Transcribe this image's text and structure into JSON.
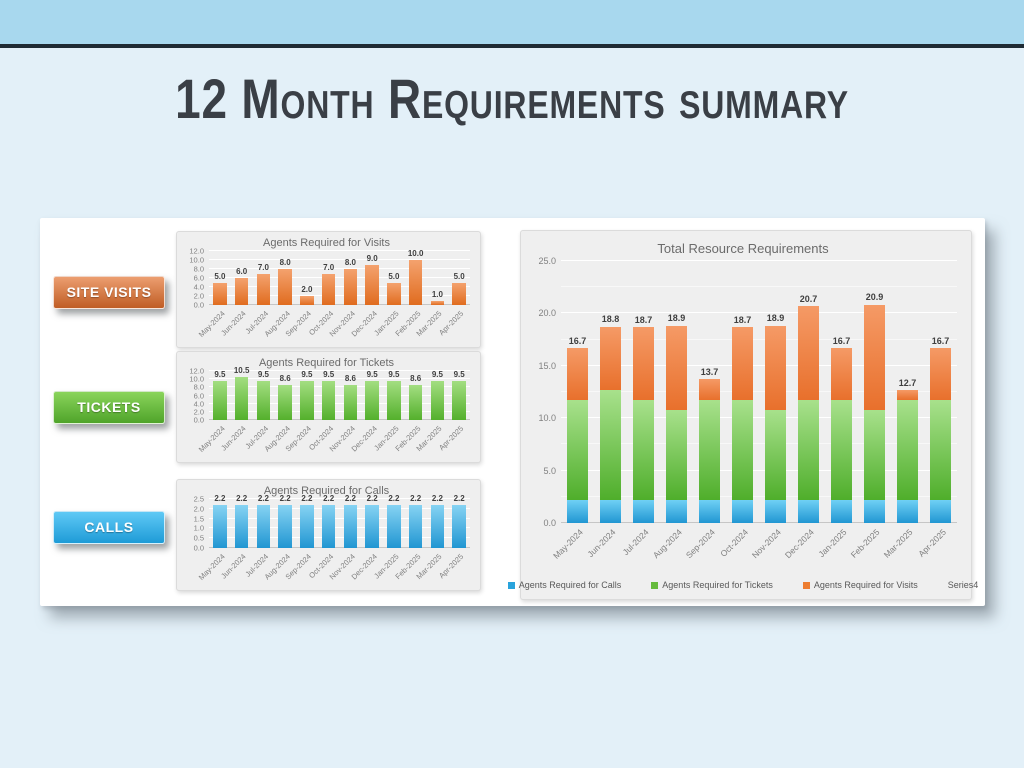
{
  "slide": {
    "title": "12 Month Requirements summary"
  },
  "palette": {
    "top_band": "#A8D8EE",
    "accent_line": "#1E2B34",
    "background": "#E3F0F8",
    "panel": "#FFFFFF",
    "card_background": "#EFEFEF",
    "title_text": "#3A3F46",
    "chart_title_text": "#6B6B6B",
    "axis_text": "#808080",
    "data_label_text": "#3F3F3F"
  },
  "buttons": [
    {
      "id": "site-visits",
      "label": "SITE VISITS",
      "gradient_top": "#EC9E70",
      "gradient_bottom": "#C05D24"
    },
    {
      "id": "tickets",
      "label": "TICKETS",
      "gradient_top": "#8AD45B",
      "gradient_bottom": "#4FA42A"
    },
    {
      "id": "calls",
      "label": "CALLS",
      "gradient_top": "#5FC9F5",
      "gradient_bottom": "#1E9BD7"
    }
  ],
  "chart_data": [
    {
      "id": "visits",
      "type": "bar",
      "title": "Agents Required for Visits",
      "categories": [
        "May-2024",
        "Jun-2024",
        "Jul-2024",
        "Aug-2024",
        "Sep-2024",
        "Oct-2024",
        "Nov-2024",
        "Dec-2024",
        "Jan-2025",
        "Feb-2025",
        "Mar-2025",
        "Apr-2025"
      ],
      "values": [
        5.0,
        6.0,
        7.0,
        8.0,
        2.0,
        7.0,
        8.0,
        9.0,
        5.0,
        10.0,
        1.0,
        5.0
      ],
      "ylim": [
        0,
        12
      ],
      "ytick_step": 2,
      "grid": true,
      "legend_position": "none",
      "bar_gradient": [
        "#F4A26E",
        "#E06C1F"
      ]
    },
    {
      "id": "tickets",
      "type": "bar",
      "title": "Agents Required for Tickets",
      "categories": [
        "May-2024",
        "Jun-2024",
        "Jul-2024",
        "Aug-2024",
        "Sep-2024",
        "Oct-2024",
        "Nov-2024",
        "Dec-2024",
        "Jan-2025",
        "Feb-2025",
        "Mar-2025",
        "Apr-2025"
      ],
      "values": [
        9.5,
        10.5,
        9.5,
        8.6,
        9.5,
        9.5,
        8.6,
        9.5,
        9.5,
        8.6,
        9.5,
        9.5
      ],
      "ylim": [
        0,
        12
      ],
      "ytick_step": 2,
      "grid": true,
      "legend_position": "none",
      "bar_gradient": [
        "#A3DE81",
        "#54B02C"
      ]
    },
    {
      "id": "calls",
      "type": "bar",
      "title": "Agents Required for Calls",
      "categories": [
        "May-2024",
        "Jun-2024",
        "Jul-2024",
        "Aug-2024",
        "Sep-2024",
        "Oct-2024",
        "Nov-2024",
        "Dec-2024",
        "Jan-2025",
        "Feb-2025",
        "Mar-2025",
        "Apr-2025"
      ],
      "values": [
        2.2,
        2.2,
        2.2,
        2.2,
        2.2,
        2.2,
        2.2,
        2.2,
        2.2,
        2.2,
        2.2,
        2.2
      ],
      "ylim": [
        0,
        2.5
      ],
      "ytick_step": 0.5,
      "grid": true,
      "legend_position": "none",
      "bar_gradient": [
        "#86D3F3",
        "#2196D2"
      ]
    },
    {
      "id": "total",
      "type": "stacked-bar",
      "title": "Total Resource Requirements",
      "categories": [
        "May-2024",
        "Jun-2024",
        "Jul-2024",
        "Aug-2024",
        "Sep-2024",
        "Oct-2024",
        "Nov-2024",
        "Dec-2024",
        "Jan-2025",
        "Feb-2025",
        "Mar-2025",
        "Apr-2025"
      ],
      "series": [
        {
          "name": "Agents Required for Calls",
          "values": [
            2.2,
            2.2,
            2.2,
            2.2,
            2.2,
            2.2,
            2.2,
            2.2,
            2.2,
            2.2,
            2.2,
            2.2
          ],
          "gradient": [
            "#6FD0F5",
            "#2196D2"
          ],
          "legend_color": "#29A3DC"
        },
        {
          "name": "Agents Required for Tickets",
          "values": [
            9.5,
            10.5,
            9.5,
            8.6,
            9.5,
            9.5,
            8.6,
            9.5,
            9.5,
            8.6,
            9.5,
            9.5
          ],
          "gradient": [
            "#A8E18C",
            "#4FAE2B"
          ],
          "legend_color": "#66BB3D"
        },
        {
          "name": "Agents Required for Visits",
          "values": [
            5.0,
            6.0,
            7.0,
            8.0,
            2.0,
            7.0,
            8.0,
            9.0,
            5.0,
            10.0,
            1.0,
            5.0
          ],
          "gradient": [
            "#F59A66",
            "#E8702C"
          ],
          "legend_color": "#ED7D31"
        },
        {
          "name": "Series4",
          "values": [],
          "gradient": null,
          "legend_color": null
        }
      ],
      "totals": [
        16.7,
        18.8,
        18.7,
        18.9,
        13.7,
        18.7,
        18.9,
        20.7,
        16.7,
        20.9,
        12.7,
        16.7
      ],
      "ylim": [
        0,
        25
      ],
      "ytick_step": 5,
      "minor_tick_step": 2.5,
      "grid": true,
      "legend_position": "bottom"
    }
  ]
}
